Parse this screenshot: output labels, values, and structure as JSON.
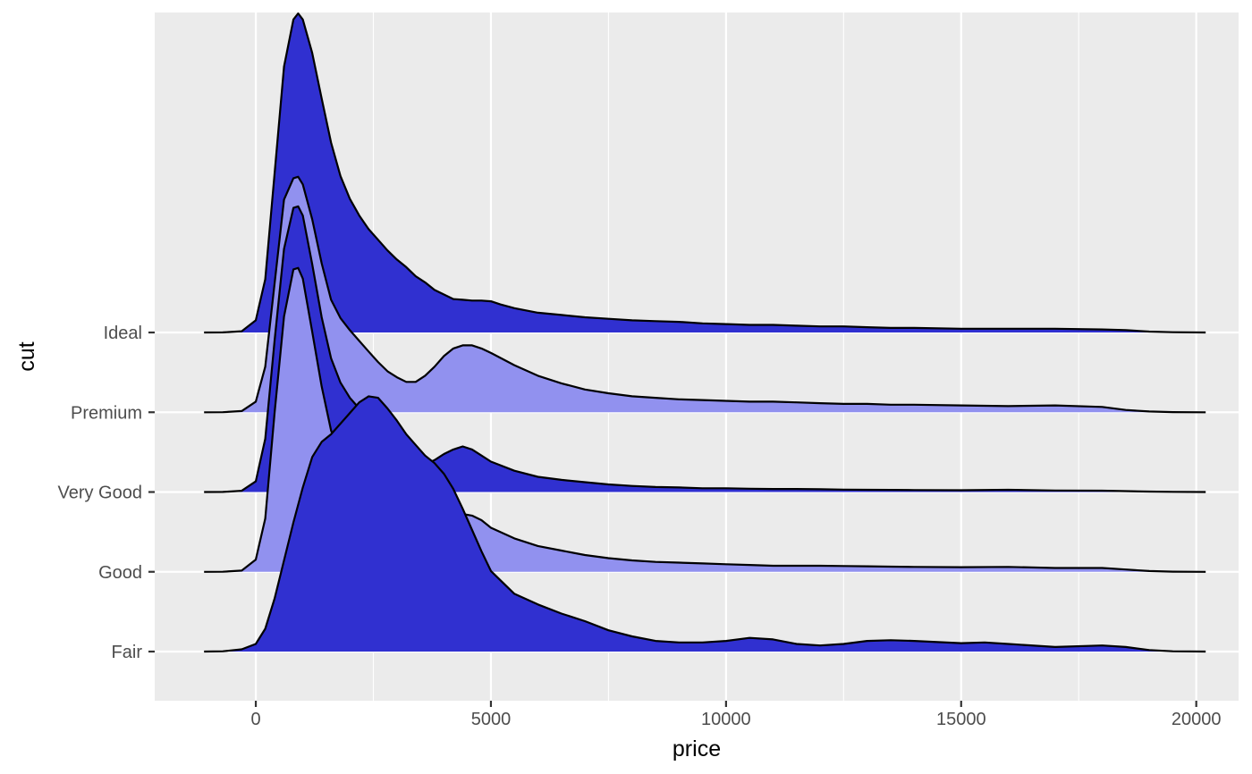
{
  "chart_data": {
    "type": "ridgeline",
    "title": "",
    "xlabel": "price",
    "ylabel": "cut",
    "xlim": [
      -2150,
      20900
    ],
    "x_ticks": [
      0,
      5000,
      10000,
      15000,
      20000
    ],
    "x_tick_labels": [
      "0",
      "5000",
      "10000",
      "15000",
      "20000"
    ],
    "categories": [
      "Fair",
      "Good",
      "Very Good",
      "Premium",
      "Ideal"
    ],
    "grid": true,
    "legend": "none",
    "colors": {
      "panel": "#ebebeb",
      "grid": "#ffffff",
      "tick": "#333333",
      "fill_dark": "#3030d0",
      "fill_light": "#9191ef",
      "outline": "#000000"
    },
    "series": [
      {
        "name": "Ideal",
        "fill": "#3030d0",
        "x": [
          -1100,
          -700,
          -300,
          0,
          200,
          400,
          600,
          800,
          900,
          1000,
          1200,
          1400,
          1600,
          1800,
          2000,
          2200,
          2400,
          2600,
          2800,
          3000,
          3200,
          3400,
          3600,
          3800,
          4000,
          4200,
          4400,
          4600,
          4800,
          5000,
          5200,
          5500,
          6000,
          6500,
          7000,
          7500,
          8000,
          8500,
          9000,
          9500,
          10000,
          10500,
          11000,
          11500,
          12000,
          12500,
          13000,
          13500,
          14000,
          15000,
          16000,
          17000,
          18000,
          18500,
          19000,
          19500,
          20200
        ],
        "y": [
          0,
          0.0005,
          0.008,
          0.08,
          0.35,
          1.05,
          1.75,
          2.06,
          2.1,
          2.06,
          1.84,
          1.54,
          1.25,
          1.03,
          0.88,
          0.77,
          0.68,
          0.61,
          0.54,
          0.48,
          0.43,
          0.37,
          0.33,
          0.28,
          0.25,
          0.22,
          0.215,
          0.21,
          0.21,
          0.205,
          0.185,
          0.16,
          0.13,
          0.115,
          0.1,
          0.09,
          0.08,
          0.075,
          0.07,
          0.06,
          0.055,
          0.05,
          0.05,
          0.045,
          0.04,
          0.04,
          0.035,
          0.03,
          0.03,
          0.025,
          0.025,
          0.025,
          0.02,
          0.015,
          0.006,
          0.002,
          0
        ]
      },
      {
        "name": "Premium",
        "fill": "#9191ef",
        "x": [
          -1100,
          -700,
          -300,
          0,
          200,
          400,
          600,
          800,
          900,
          1000,
          1200,
          1400,
          1600,
          1800,
          2000,
          2200,
          2400,
          2600,
          2800,
          3000,
          3200,
          3400,
          3600,
          3800,
          4000,
          4200,
          4400,
          4600,
          4800,
          5000,
          5500,
          6000,
          6500,
          7000,
          7500,
          8000,
          8500,
          9000,
          9500,
          10000,
          10500,
          11000,
          11500,
          12000,
          12500,
          13000,
          13500,
          14000,
          15000,
          16000,
          17000,
          18000,
          18500,
          19000,
          19500,
          20200
        ],
        "y": [
          0,
          0.0005,
          0.008,
          0.07,
          0.3,
          0.85,
          1.4,
          1.54,
          1.55,
          1.5,
          1.27,
          0.98,
          0.74,
          0.62,
          0.54,
          0.47,
          0.4,
          0.33,
          0.27,
          0.23,
          0.2,
          0.2,
          0.24,
          0.3,
          0.37,
          0.42,
          0.44,
          0.44,
          0.42,
          0.39,
          0.31,
          0.24,
          0.19,
          0.15,
          0.125,
          0.105,
          0.095,
          0.085,
          0.08,
          0.075,
          0.07,
          0.07,
          0.065,
          0.06,
          0.055,
          0.055,
          0.05,
          0.05,
          0.045,
          0.04,
          0.045,
          0.035,
          0.015,
          0.005,
          0.001,
          0
        ]
      },
      {
        "name": "Very Good",
        "fill": "#3030d0",
        "x": [
          -1100,
          -700,
          -300,
          0,
          200,
          400,
          600,
          800,
          900,
          1000,
          1200,
          1400,
          1600,
          1800,
          2000,
          2200,
          2400,
          2600,
          2800,
          3000,
          3200,
          3400,
          3600,
          3800,
          4000,
          4200,
          4400,
          4600,
          4800,
          5000,
          5500,
          6000,
          6500,
          7000,
          7500,
          8000,
          8500,
          9000,
          9500,
          10000,
          10500,
          11000,
          11500,
          12000,
          12500,
          13000,
          13500,
          14000,
          15000,
          16000,
          17000,
          18000,
          18500,
          19000,
          19500,
          20200
        ],
        "y": [
          0,
          0.0005,
          0.008,
          0.07,
          0.35,
          1.0,
          1.6,
          1.87,
          1.88,
          1.82,
          1.5,
          1.15,
          0.88,
          0.72,
          0.62,
          0.55,
          0.47,
          0.4,
          0.32,
          0.25,
          0.2,
          0.18,
          0.18,
          0.21,
          0.25,
          0.28,
          0.3,
          0.28,
          0.24,
          0.2,
          0.14,
          0.1,
          0.08,
          0.065,
          0.05,
          0.04,
          0.033,
          0.03,
          0.025,
          0.025,
          0.022,
          0.02,
          0.02,
          0.018,
          0.016,
          0.015,
          0.014,
          0.013,
          0.012,
          0.015,
          0.01,
          0.009,
          0.006,
          0.003,
          0.001,
          0
        ]
      },
      {
        "name": "Good",
        "fill": "#9191ef",
        "x": [
          -1100,
          -700,
          -300,
          0,
          200,
          400,
          600,
          800,
          900,
          1000,
          1200,
          1400,
          1600,
          1800,
          2000,
          2200,
          2400,
          2600,
          2800,
          3000,
          3200,
          3400,
          3600,
          3800,
          4000,
          4200,
          4400,
          4600,
          4800,
          5000,
          5500,
          6000,
          6500,
          7000,
          7500,
          8000,
          8500,
          9000,
          9500,
          10000,
          10500,
          11000,
          11500,
          12000,
          12500,
          13000,
          13500,
          14000,
          15000,
          16000,
          17000,
          18000,
          18500,
          19000,
          19500,
          20200
        ],
        "y": [
          0,
          0.0005,
          0.008,
          0.08,
          0.35,
          1.05,
          1.68,
          1.99,
          2.0,
          1.93,
          1.58,
          1.22,
          0.93,
          0.76,
          0.65,
          0.57,
          0.49,
          0.42,
          0.34,
          0.26,
          0.21,
          0.2,
          0.22,
          0.27,
          0.32,
          0.36,
          0.38,
          0.37,
          0.34,
          0.29,
          0.22,
          0.17,
          0.14,
          0.11,
          0.09,
          0.075,
          0.065,
          0.06,
          0.055,
          0.05,
          0.045,
          0.04,
          0.04,
          0.04,
          0.038,
          0.036,
          0.034,
          0.032,
          0.03,
          0.032,
          0.025,
          0.025,
          0.015,
          0.005,
          0.001,
          0
        ]
      },
      {
        "name": "Fair",
        "fill": "#3030d0",
        "x": [
          -1100,
          -700,
          -300,
          0,
          200,
          400,
          600,
          800,
          1000,
          1200,
          1400,
          1600,
          1800,
          2000,
          2200,
          2400,
          2600,
          2800,
          3000,
          3200,
          3400,
          3600,
          3800,
          4000,
          4200,
          4400,
          4600,
          4800,
          5000,
          5500,
          6000,
          6500,
          7000,
          7500,
          8000,
          8500,
          9000,
          9500,
          10000,
          10500,
          11000,
          11500,
          12000,
          12500,
          13000,
          13500,
          14000,
          15000,
          15500,
          16000,
          17000,
          18000,
          18500,
          19000,
          19500,
          20200
        ],
        "y": [
          0,
          0.002,
          0.015,
          0.05,
          0.15,
          0.35,
          0.6,
          0.85,
          1.08,
          1.28,
          1.38,
          1.43,
          1.5,
          1.57,
          1.64,
          1.68,
          1.67,
          1.6,
          1.52,
          1.43,
          1.36,
          1.29,
          1.24,
          1.17,
          1.07,
          0.94,
          0.8,
          0.66,
          0.53,
          0.38,
          0.31,
          0.25,
          0.2,
          0.14,
          0.1,
          0.07,
          0.06,
          0.06,
          0.07,
          0.09,
          0.08,
          0.05,
          0.04,
          0.05,
          0.07,
          0.075,
          0.07,
          0.055,
          0.06,
          0.05,
          0.03,
          0.04,
          0.03,
          0.01,
          0.002,
          0
        ]
      }
    ]
  }
}
